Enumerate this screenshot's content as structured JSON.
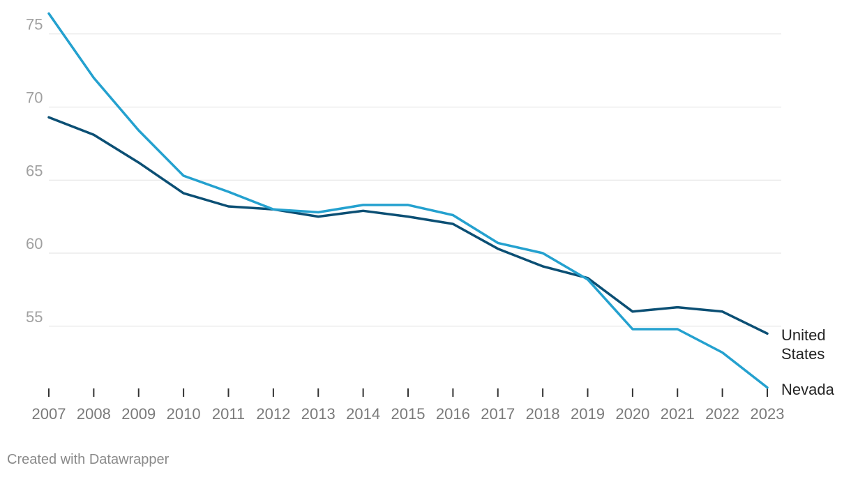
{
  "chart_data": {
    "type": "line",
    "title": "",
    "xlabel": "",
    "ylabel": "",
    "x": [
      2007,
      2008,
      2009,
      2010,
      2011,
      2012,
      2013,
      2014,
      2015,
      2016,
      2017,
      2018,
      2019,
      2020,
      2021,
      2022,
      2023
    ],
    "x_tick_labels": [
      "2007",
      "2008",
      "2009",
      "2010",
      "2011",
      "2012",
      "2013",
      "2014",
      "2015",
      "2016",
      "2017",
      "2018",
      "2019",
      "2020",
      "2021",
      "2022",
      "2023"
    ],
    "y_ticks": [
      55,
      60,
      65,
      70,
      75
    ],
    "y_tick_labels": [
      "55",
      "60",
      "65",
      "70",
      "75"
    ],
    "ylim": [
      50.6,
      76.8
    ],
    "grid": true,
    "series": [
      {
        "name": "United States",
        "label_lines": [
          "United",
          "States"
        ],
        "color": "#0b4f74",
        "values": [
          69.3,
          68.1,
          66.2,
          64.1,
          63.2,
          63.0,
          62.5,
          62.9,
          62.5,
          62.0,
          60.3,
          59.1,
          58.3,
          56.0,
          56.3,
          56.0,
          54.5
        ]
      },
      {
        "name": "Nevada",
        "label_lines": [
          "Nevada"
        ],
        "color": "#24a1cf",
        "values": [
          76.4,
          72.0,
          68.4,
          65.3,
          64.2,
          63.0,
          62.8,
          63.3,
          63.3,
          62.6,
          60.7,
          60.0,
          58.2,
          54.8,
          54.8,
          53.2,
          50.8
        ]
      }
    ]
  },
  "footer": {
    "credit": "Created with Datawrapper"
  }
}
